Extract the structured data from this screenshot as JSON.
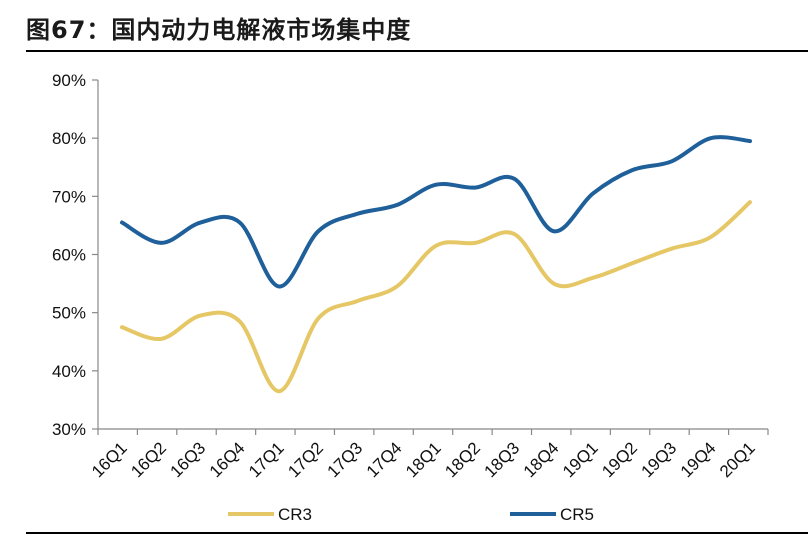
{
  "title": "图67：国内动力电解液市场集中度",
  "chart_data": {
    "type": "line",
    "categories": [
      "16Q1",
      "16Q2",
      "16Q3",
      "16Q4",
      "17Q1",
      "17Q2",
      "17Q3",
      "17Q4",
      "18Q1",
      "18Q2",
      "18Q3",
      "18Q4",
      "19Q1",
      "19Q2",
      "19Q3",
      "19Q4",
      "20Q1"
    ],
    "ylim": [
      30,
      90
    ],
    "yticks": [
      "30%",
      "40%",
      "50%",
      "60%",
      "70%",
      "80%",
      "90%"
    ],
    "ytick_values": [
      30,
      40,
      50,
      60,
      70,
      80,
      90
    ],
    "grid": false,
    "legend_position": "bottom",
    "series": [
      {
        "name": "CR3",
        "color": "#E6C766",
        "values": [
          47.5,
          45.5,
          49.5,
          48.5,
          36.5,
          49,
          52,
          54.5,
          61.5,
          62,
          63.5,
          55,
          56,
          58.5,
          61,
          63,
          69
        ]
      },
      {
        "name": "CR5",
        "color": "#1F5F9A",
        "values": [
          65.5,
          62,
          65.5,
          65.5,
          54.5,
          64,
          67,
          68.5,
          72,
          71.5,
          73,
          64,
          70.5,
          74.5,
          76,
          80,
          79.5
        ]
      }
    ]
  }
}
